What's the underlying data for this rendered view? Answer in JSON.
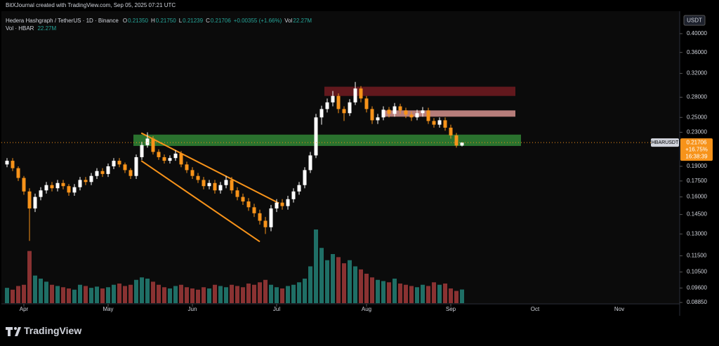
{
  "chart_data": {
    "type": "candlestick",
    "title": "BitXJournal created with TradingView.com, Sep 05, 2025 07:21 UTC",
    "symbol_line": "Hedera Hashgraph / TetherUS · 1D · Binance",
    "ohlc_legend": [
      {
        "label": "O",
        "value": "0.21350"
      },
      {
        "label": "H",
        "value": "0.21750"
      },
      {
        "label": "L",
        "value": "0.21239"
      },
      {
        "label": "C",
        "value": "0.21706"
      }
    ],
    "change": "+0.00355 (+1.66%)",
    "vol_label": "Vol",
    "vol_value": "22.27M",
    "vol_line": "Vol · HBAR",
    "currency": "USDT",
    "ticker": "HBARUSDT",
    "last_price": {
      "value": 0.21706,
      "label": "0.21706"
    },
    "last_change": "+16.75%",
    "countdown": "16:38:39",
    "brand": "TradingView",
    "log_scale": true,
    "grid": false,
    "up_color": "#ffffff",
    "down_color": "#f7931a",
    "volume_up_color": "#1f6f66",
    "volume_down_color": "#8a3232",
    "ylim": [
      0.0878,
      0.443
    ],
    "yticks": [
      {
        "value": 0.4,
        "label": "0.40000"
      },
      {
        "value": 0.36,
        "label": "0.36000"
      },
      {
        "value": 0.32,
        "label": "0.32000"
      },
      {
        "value": 0.28,
        "label": "0.28000"
      },
      {
        "value": 0.25,
        "label": "0.25000"
      },
      {
        "value": 0.23,
        "label": "0.23000"
      },
      {
        "value": 0.19,
        "label": "0.19000"
      },
      {
        "value": 0.175,
        "label": "0.17500"
      },
      {
        "value": 0.16,
        "label": "0.16000"
      },
      {
        "value": 0.145,
        "label": "0.14500"
      },
      {
        "value": 0.13,
        "label": "0.13000"
      },
      {
        "value": 0.115,
        "label": "0.11500"
      },
      {
        "value": 0.105,
        "label": "0.10500"
      },
      {
        "value": 0.096,
        "label": "0.09600"
      },
      {
        "value": 0.0885,
        "label": "0.08850"
      }
    ],
    "categories": [
      null,
      null,
      null,
      "Apr",
      null,
      null,
      null,
      null,
      null,
      null,
      null,
      null,
      null,
      null,
      null,
      null,
      null,
      null,
      "May",
      null,
      null,
      null,
      null,
      null,
      null,
      null,
      null,
      null,
      null,
      null,
      null,
      null,
      null,
      "Jun",
      null,
      null,
      null,
      null,
      null,
      null,
      null,
      null,
      null,
      null,
      null,
      null,
      null,
      null,
      "Jul",
      null,
      null,
      null,
      null,
      null,
      null,
      null,
      null,
      null,
      null,
      null,
      null,
      null,
      null,
      null,
      "Aug",
      null,
      null,
      null,
      null,
      null,
      null,
      null,
      null,
      null,
      null,
      null,
      null,
      null,
      null,
      "Sep",
      null,
      null
    ],
    "extra_x_labels": [
      {
        "value": 94,
        "label": "Oct"
      },
      {
        "value": 109,
        "label": "Nov"
      }
    ],
    "open": [
      0.192,
      0.196,
      0.188,
      0.178,
      0.165,
      0.15,
      0.16,
      0.166,
      0.171,
      0.168,
      0.173,
      0.17,
      0.164,
      0.169,
      0.176,
      0.174,
      0.18,
      0.185,
      0.182,
      0.19,
      0.196,
      0.192,
      0.186,
      0.18,
      0.2,
      0.214,
      0.222,
      0.206,
      0.2,
      0.196,
      0.199,
      0.204,
      0.192,
      0.186,
      0.18,
      0.176,
      0.17,
      0.173,
      0.166,
      0.171,
      0.176,
      0.166,
      0.16,
      0.156,
      0.151,
      0.146,
      0.14,
      0.135,
      0.15,
      0.155,
      0.152,
      0.158,
      0.165,
      0.171,
      0.186,
      0.202,
      0.25,
      0.262,
      0.272,
      0.282,
      0.262,
      0.256,
      0.272,
      0.294,
      0.278,
      0.262,
      0.246,
      0.25,
      0.261,
      0.255,
      0.266,
      0.26,
      0.254,
      0.25,
      0.256,
      0.26,
      0.245,
      0.24,
      0.246,
      0.236,
      0.226,
      0.2135
    ],
    "high": [
      0.199,
      0.199,
      0.19,
      0.18,
      0.168,
      0.163,
      0.169,
      0.174,
      0.174,
      0.176,
      0.176,
      0.172,
      0.172,
      0.179,
      0.179,
      0.183,
      0.188,
      0.188,
      0.193,
      0.199,
      0.199,
      0.194,
      0.188,
      0.203,
      0.218,
      0.23,
      0.225,
      0.209,
      0.203,
      0.202,
      0.208,
      0.207,
      0.195,
      0.189,
      0.183,
      0.179,
      0.176,
      0.176,
      0.174,
      0.18,
      0.179,
      0.169,
      0.163,
      0.159,
      0.154,
      0.149,
      0.143,
      0.153,
      0.158,
      0.158,
      0.161,
      0.168,
      0.174,
      0.189,
      0.206,
      0.255,
      0.267,
      0.278,
      0.29,
      0.286,
      0.266,
      0.277,
      0.305,
      0.298,
      0.282,
      0.266,
      0.255,
      0.266,
      0.265,
      0.271,
      0.27,
      0.264,
      0.258,
      0.261,
      0.265,
      0.264,
      0.249,
      0.25,
      0.25,
      0.24,
      0.229,
      0.2175
    ],
    "low": [
      0.189,
      0.185,
      0.175,
      0.162,
      0.125,
      0.147,
      0.157,
      0.163,
      0.165,
      0.165,
      0.167,
      0.161,
      0.161,
      0.166,
      0.171,
      0.171,
      0.177,
      0.179,
      0.179,
      0.187,
      0.189,
      0.183,
      0.177,
      0.177,
      0.197,
      0.211,
      0.203,
      0.197,
      0.193,
      0.193,
      0.196,
      0.189,
      0.183,
      0.177,
      0.173,
      0.167,
      0.167,
      0.163,
      0.163,
      0.168,
      0.163,
      0.157,
      0.153,
      0.148,
      0.143,
      0.137,
      0.13,
      0.132,
      0.147,
      0.149,
      0.149,
      0.155,
      0.162,
      0.168,
      0.183,
      0.199,
      0.24,
      0.257,
      0.266,
      0.256,
      0.245,
      0.252,
      0.268,
      0.272,
      0.257,
      0.241,
      0.241,
      0.246,
      0.25,
      0.251,
      0.255,
      0.249,
      0.245,
      0.246,
      0.251,
      0.241,
      0.236,
      0.236,
      0.232,
      0.222,
      0.211,
      0.21239
    ],
    "close": [
      0.196,
      0.188,
      0.178,
      0.165,
      0.15,
      0.16,
      0.166,
      0.171,
      0.168,
      0.173,
      0.17,
      0.164,
      0.169,
      0.176,
      0.174,
      0.18,
      0.185,
      0.182,
      0.19,
      0.196,
      0.192,
      0.186,
      0.18,
      0.2,
      0.214,
      0.222,
      0.206,
      0.2,
      0.196,
      0.199,
      0.204,
      0.192,
      0.186,
      0.18,
      0.176,
      0.17,
      0.173,
      0.166,
      0.171,
      0.176,
      0.166,
      0.16,
      0.156,
      0.151,
      0.146,
      0.14,
      0.135,
      0.15,
      0.155,
      0.152,
      0.158,
      0.165,
      0.171,
      0.186,
      0.202,
      0.25,
      0.262,
      0.272,
      0.282,
      0.262,
      0.256,
      0.272,
      0.294,
      0.278,
      0.262,
      0.246,
      0.25,
      0.261,
      0.255,
      0.266,
      0.26,
      0.254,
      0.25,
      0.256,
      0.26,
      0.245,
      0.24,
      0.246,
      0.236,
      0.226,
      0.2135,
      0.21706
    ],
    "volume": [
      25,
      22,
      28,
      30,
      85,
      45,
      40,
      35,
      30,
      28,
      26,
      24,
      22,
      30,
      28,
      25,
      27,
      24,
      26,
      30,
      32,
      28,
      30,
      38,
      42,
      40,
      35,
      30,
      26,
      24,
      28,
      30,
      26,
      24,
      22,
      26,
      24,
      30,
      28,
      26,
      30,
      28,
      26,
      32,
      30,
      34,
      38,
      30,
      26,
      24,
      28,
      30,
      34,
      40,
      60,
      120,
      90,
      70,
      80,
      75,
      65,
      70,
      60,
      55,
      48,
      42,
      38,
      36,
      34,
      40,
      32,
      30,
      28,
      26,
      30,
      28,
      34,
      30,
      32,
      24,
      20,
      22.27
    ],
    "zones": [
      {
        "color": "#2e7d32",
        "low": 0.213,
        "high": 0.227,
        "from": 22.5,
        "to": 91.5
      },
      {
        "color": "#6b1a1f",
        "low": 0.282,
        "high": 0.297,
        "from": 56.5,
        "to": 90.5
      },
      {
        "color": "#c98a86",
        "low": 0.251,
        "high": 0.26,
        "from": 67.3,
        "to": 90.5
      }
    ],
    "trendlines": [
      {
        "color": "#f7931a",
        "x": [
          23.9,
          48.4
        ],
        "y": [
          0.229,
          0.1545
        ]
      },
      {
        "color": "#f7931a",
        "x": [
          23.9,
          45
        ],
        "y": [
          0.196,
          0.1245
        ]
      }
    ]
  }
}
